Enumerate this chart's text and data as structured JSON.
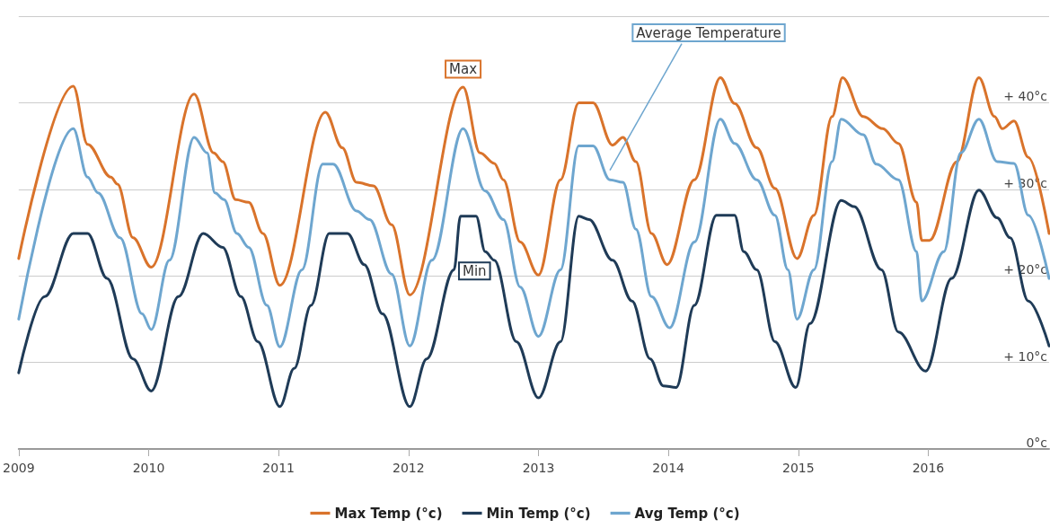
{
  "chart_data": {
    "type": "line",
    "xlim": [
      2009,
      2016.93
    ],
    "xticks": [
      2009,
      2010,
      2011,
      2012,
      2013,
      2014,
      2015,
      2016
    ],
    "ylim": [
      0,
      50
    ],
    "yticks": [
      {
        "value": 0,
        "label": "0°c"
      },
      {
        "value": 10,
        "label": "+ 10°c"
      },
      {
        "value": 20,
        "label": "+ 20°c"
      },
      {
        "value": 30,
        "label": "+ 30°c"
      },
      {
        "value": 40,
        "label": "+ 40°c"
      },
      {
        "value": 50,
        "label": null
      }
    ],
    "grid": "y",
    "legend": "bottom",
    "marker": "none",
    "line_style": "solid",
    "annotations": [
      {
        "text": "Max",
        "x": 2012.42,
        "y": 41.8
      },
      {
        "text": "Min",
        "x": 2012.66,
        "y": 21.8
      },
      {
        "text": "Average Temperature",
        "x": 2013.55,
        "y": 32.2
      }
    ],
    "series": [
      {
        "name": "Max Temp (°c)",
        "color": "#d9732b",
        "x": [
          2009,
          2009.42,
          2009.53,
          2009.71,
          2009.76,
          2009.88,
          2010.02,
          2010.35,
          2010.5,
          2010.57,
          2010.67,
          2010.77,
          2010.88,
          2011.01,
          2011.36,
          2011.49,
          2011.6,
          2011.73,
          2011.87,
          2012.01,
          2012.42,
          2012.55,
          2012.66,
          2012.73,
          2012.86,
          2013,
          2013.17,
          2013.31,
          2013.42,
          2013.57,
          2013.65,
          2013.75,
          2013.87,
          2013.99,
          2014.2,
          2014.4,
          2014.51,
          2014.68,
          2014.82,
          2014.99,
          2015.12,
          2015.26,
          2015.34,
          2015.5,
          2015.65,
          2015.77,
          2015.91,
          2015.95,
          2016.01,
          2016.22,
          2016.39,
          2016.51,
          2016.57,
          2016.66,
          2016.77,
          2016.93
        ],
        "values": [
          22,
          41.9,
          35.2,
          31.4,
          30.6,
          24.4,
          21,
          41,
          34.2,
          33.2,
          28.8,
          28.5,
          24.9,
          18.9,
          38.9,
          34.8,
          30.8,
          30.4,
          25.9,
          17.8,
          41.8,
          34.2,
          33,
          31.1,
          23.9,
          20.1,
          31.1,
          40,
          40,
          35.1,
          36,
          33.2,
          24.9,
          21.3,
          31.1,
          42.9,
          39.9,
          34.8,
          30.1,
          22,
          27,
          38.4,
          42.9,
          38.4,
          37,
          35.3,
          28.5,
          24.1,
          24.1,
          33.2,
          42.9,
          38.4,
          37,
          37.9,
          33.7,
          24.9
        ]
      },
      {
        "name": "Min Temp (°c)",
        "color": "#1f3b57",
        "x": [
          2009,
          2009.2,
          2009.42,
          2009.53,
          2009.68,
          2009.88,
          2010.02,
          2010.23,
          2010.42,
          2010.57,
          2010.71,
          2010.84,
          2011.01,
          2011.12,
          2011.25,
          2011.39,
          2011.53,
          2011.66,
          2011.8,
          2012.01,
          2012.14,
          2012.35,
          2012.4,
          2012.52,
          2012.59,
          2012.66,
          2012.83,
          2013,
          2013.17,
          2013.31,
          2013.39,
          2013.57,
          2013.72,
          2013.86,
          2013.96,
          2014.06,
          2014.2,
          2014.37,
          2014.51,
          2014.58,
          2014.68,
          2014.82,
          2014.98,
          2015.09,
          2015.33,
          2015.43,
          2015.64,
          2015.77,
          2015.98,
          2016.18,
          2016.39,
          2016.53,
          2016.63,
          2016.77,
          2016.93
        ],
        "values": [
          8.8,
          17.6,
          24.9,
          24.9,
          19.7,
          10.4,
          6.7,
          17.6,
          24.9,
          23.3,
          17.6,
          12.4,
          4.9,
          9.3,
          16.6,
          24.9,
          24.9,
          21.3,
          15.6,
          4.9,
          10.4,
          20.7,
          26.9,
          26.9,
          22.8,
          21.8,
          12.4,
          5.9,
          12.4,
          26.9,
          26.5,
          21.8,
          17.1,
          10.4,
          7.3,
          7.1,
          16.6,
          27,
          27,
          22.8,
          20.7,
          12.4,
          7.1,
          14.5,
          28.7,
          28,
          20.7,
          13.5,
          9,
          19.7,
          29.9,
          26.7,
          24.4,
          17.1,
          11.9
        ]
      },
      {
        "name": "Avg Temp (°c)",
        "color": "#6ea6cf",
        "x": [
          2009,
          2009.42,
          2009.53,
          2009.61,
          2009.78,
          2009.95,
          2010.02,
          2010.16,
          2010.35,
          2010.45,
          2010.51,
          2010.58,
          2010.68,
          2010.77,
          2010.91,
          2011.01,
          2011.18,
          2011.34,
          2011.42,
          2011.6,
          2011.7,
          2011.87,
          2012.01,
          2012.18,
          2012.42,
          2012.59,
          2012.73,
          2012.86,
          2013,
          2013.17,
          2013.31,
          2013.42,
          2013.55,
          2013.65,
          2013.75,
          2013.87,
          2014.01,
          2014.2,
          2014.4,
          2014.51,
          2014.68,
          2014.82,
          2014.92,
          2014.99,
          2015.12,
          2015.26,
          2015.33,
          2015.5,
          2015.6,
          2015.77,
          2015.91,
          2015.95,
          2016.12,
          2016.25,
          2016.39,
          2016.53,
          2016.66,
          2016.77,
          2016.93
        ],
        "values": [
          15,
          37,
          31.4,
          29.6,
          24.4,
          15.6,
          13.8,
          21.8,
          36,
          34.2,
          29.6,
          28.8,
          24.9,
          23.3,
          16.6,
          11.8,
          20.7,
          32.9,
          32.9,
          27.5,
          26.5,
          20.2,
          11.9,
          21.8,
          37,
          29.8,
          26.5,
          18.7,
          13,
          20.7,
          35,
          35,
          31.1,
          30.8,
          25.4,
          17.6,
          14,
          23.9,
          38.1,
          35.3,
          31.1,
          27,
          20.7,
          15,
          20.7,
          33.2,
          38.1,
          36.3,
          32.9,
          31.1,
          22.8,
          17.1,
          22.8,
          34.2,
          38.1,
          33.2,
          33,
          27,
          19.7
        ]
      }
    ]
  }
}
